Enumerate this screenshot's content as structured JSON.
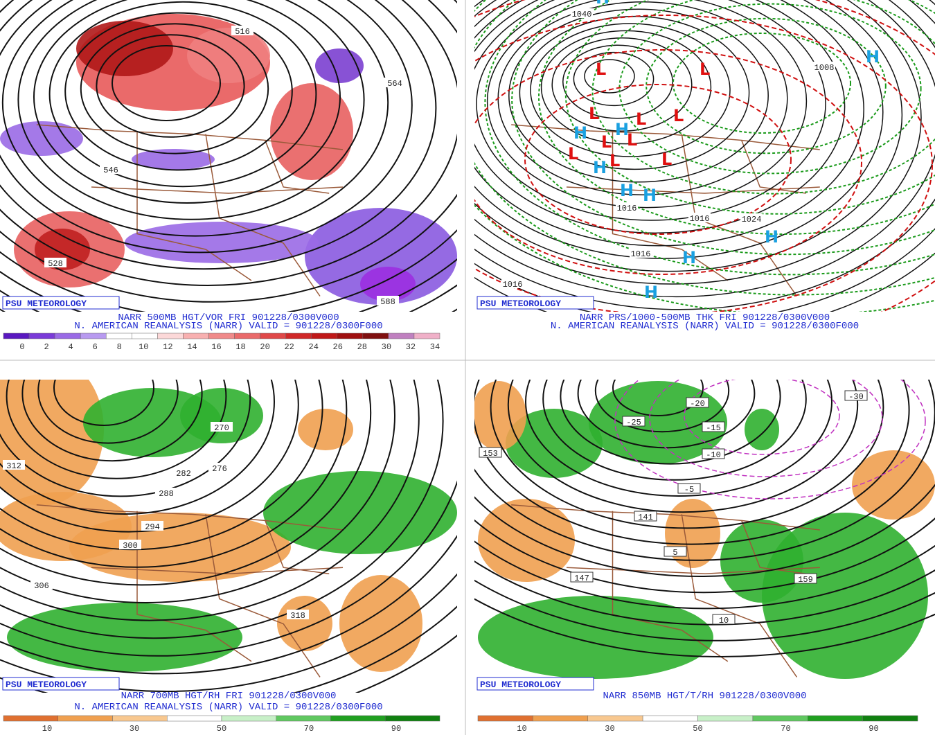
{
  "panels": [
    {
      "credit": "PSU METEOROLOGY",
      "title": "NARR 500MB HGT/VOR FRI 901228/0300V000",
      "subtitle": "N. AMERICAN REANALYSIS (NARR) VALID = 901228/0300F000",
      "scale_labels": [
        0,
        2,
        4,
        6,
        8,
        10,
        12,
        14,
        16,
        18,
        20,
        22,
        24,
        26,
        28,
        30,
        32,
        34
      ],
      "contour_labels": [
        "516",
        "564",
        "546",
        "588",
        "528"
      ]
    },
    {
      "credit": "PSU METEOROLOGY",
      "title": "NARR PRS/1000-500MB THK FRI 901228/0300V000",
      "subtitle": "N. AMERICAN REANALYSIS (NARR) VALID = 901228/0300F000",
      "contour_labels": [
        "1016",
        "1016",
        "1016",
        "1016",
        "1024",
        "1040",
        "1008"
      ],
      "markers": [
        "L",
        "L",
        "L",
        "L",
        "L",
        "L",
        "L",
        "L",
        "L",
        "L",
        "H",
        "H",
        "H",
        "H",
        "H",
        "H",
        "H",
        "H",
        "H",
        "H"
      ]
    },
    {
      "credit": "PSU METEOROLOGY",
      "title": "NARR 700MB HGT/RH FRI 901228/0300V000",
      "subtitle": "N. AMERICAN REANALYSIS (NARR) VALID = 901228/0300F000",
      "scale_labels": [
        10,
        30,
        50,
        70,
        90
      ],
      "contour_labels": [
        "270",
        "276",
        "282",
        "288",
        "294",
        "300",
        "306",
        "312",
        "318"
      ]
    },
    {
      "credit": "PSU METEOROLOGY",
      "title": "NARR 850MB HGT/T/RH 901228/0300V000",
      "scale_labels": [
        10,
        30,
        50,
        70,
        90
      ],
      "contour_labels": [
        "-30",
        "-25",
        "-20",
        "-15",
        "-10",
        "-5",
        "5",
        "10",
        "141",
        "147",
        "153",
        "159"
      ]
    }
  ]
}
